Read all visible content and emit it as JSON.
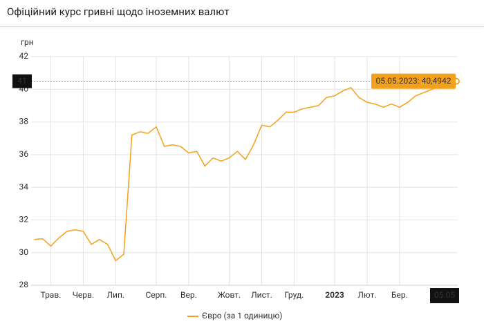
{
  "chart_data": {
    "type": "line",
    "title": "Офіційний курс гривні щодо іноземних валют",
    "y_label": "грн",
    "categories": [
      null,
      null,
      "Трав.",
      null,
      null,
      null,
      "Черв.",
      null,
      null,
      null,
      "Лип.",
      null,
      null,
      null,
      null,
      "Серп.",
      null,
      null,
      null,
      "Вер.",
      null,
      null,
      null,
      null,
      "Жовт.",
      null,
      null,
      null,
      "Лист.",
      null,
      null,
      null,
      "Груд.",
      null,
      null,
      null,
      null,
      "2023",
      null,
      null,
      null,
      "Лют.",
      null,
      null,
      null,
      "Бер.",
      null,
      null,
      null,
      null,
      null,
      null,
      null
    ],
    "series": [
      {
        "name": "Євро (за 1 одиницю)",
        "color": "#f5a01a",
        "values": [
          30.8,
          30.85,
          30.4,
          30.9,
          31.3,
          31.4,
          31.3,
          30.5,
          30.8,
          30.5,
          29.5,
          29.9,
          37.2,
          37.4,
          37.3,
          37.7,
          36.5,
          36.6,
          36.5,
          36.1,
          36.2,
          35.3,
          35.8,
          35.6,
          35.8,
          36.2,
          35.7,
          36.6,
          37.8,
          37.7,
          38.1,
          38.6,
          38.6,
          38.8,
          38.9,
          39.0,
          39.5,
          39.6,
          39.9,
          40.1,
          39.5,
          39.2,
          39.1,
          38.9,
          39.1,
          38.9,
          39.2,
          39.6,
          39.8,
          40.0,
          40.2,
          40.3,
          40.4942
        ]
      }
    ],
    "ylim": [
      28,
      42
    ],
    "yticks": [
      28,
      30,
      32,
      34,
      36,
      38,
      40,
      42
    ],
    "grid": true,
    "crosshair": {
      "x_label": "05.05",
      "y_label": "41",
      "tooltip": "05.05.2023: 40,4942"
    }
  }
}
